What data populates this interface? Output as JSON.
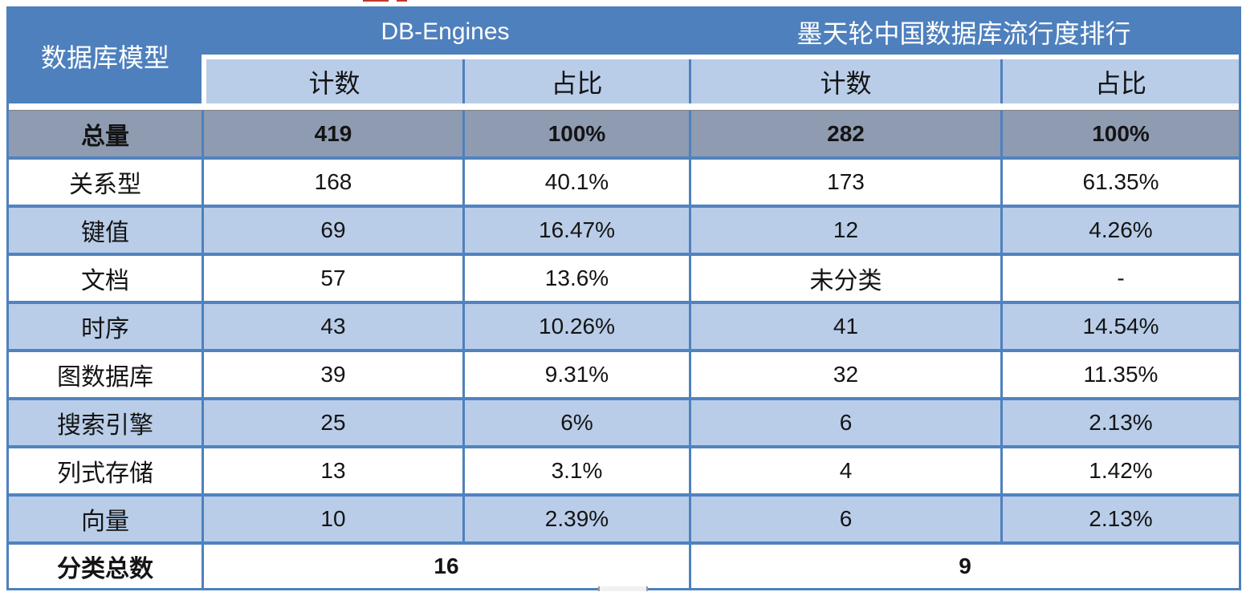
{
  "colors": {
    "header_blue": "#4E80BD",
    "band_light_blue": "#B9CDE8",
    "total_row_gray": "#8F9BB1",
    "border_blue": "#4E81BD",
    "header_text": "#FFFFFF",
    "body_text": "#141414"
  },
  "table": {
    "row_header_col": "数据库模型",
    "groups": [
      {
        "label": "DB-Engines",
        "columns": [
          "计数",
          "占比"
        ]
      },
      {
        "label": "墨天轮中国数据库流行度排行",
        "columns": [
          "计数",
          "占比"
        ]
      }
    ],
    "total_row": {
      "label": "总量",
      "values": [
        "419",
        "100%",
        "282",
        "100%"
      ]
    },
    "rows": [
      {
        "label": "关系型",
        "values": [
          "168",
          "40.1%",
          "173",
          "61.35%"
        ]
      },
      {
        "label": "键值",
        "values": [
          "69",
          "16.47%",
          "12",
          "4.26%"
        ]
      },
      {
        "label": "文档",
        "values": [
          "57",
          "13.6%",
          "未分类",
          "-"
        ]
      },
      {
        "label": "时序",
        "values": [
          "43",
          "10.26%",
          "41",
          "14.54%"
        ]
      },
      {
        "label": "图数据库",
        "values": [
          "39",
          "9.31%",
          "32",
          "11.35%"
        ]
      },
      {
        "label": "搜索引擎",
        "values": [
          "25",
          "6%",
          "6",
          "2.13%"
        ]
      },
      {
        "label": "列式存储",
        "values": [
          "13",
          "3.1%",
          "4",
          "1.42%"
        ]
      },
      {
        "label": "向量",
        "values": [
          "10",
          "2.39%",
          "6",
          "2.13%"
        ]
      }
    ],
    "footer_row": {
      "label": "分类总数",
      "values": [
        "16",
        "9"
      ]
    }
  },
  "chart_data": {
    "type": "table",
    "title": "数据库模型统计对比：DB-Engines vs 墨天轮中国数据库流行度排行",
    "columns": [
      "数据库模型",
      "DB-Engines 计数",
      "DB-Engines 占比",
      "墨天轮 计数",
      "墨天轮 占比"
    ],
    "rows": [
      [
        "总量",
        "419",
        "100%",
        "282",
        "100%"
      ],
      [
        "关系型",
        "168",
        "40.1%",
        "173",
        "61.35%"
      ],
      [
        "键值",
        "69",
        "16.47%",
        "12",
        "4.26%"
      ],
      [
        "文档",
        "57",
        "13.6%",
        "未分类",
        "-"
      ],
      [
        "时序",
        "43",
        "10.26%",
        "41",
        "14.54%"
      ],
      [
        "图数据库",
        "39",
        "9.31%",
        "32",
        "11.35%"
      ],
      [
        "搜索引擎",
        "25",
        "6%",
        "6",
        "2.13%"
      ],
      [
        "列式存储",
        "13",
        "3.1%",
        "4",
        "1.42%"
      ],
      [
        "向量",
        "10",
        "2.39%",
        "6",
        "2.13%"
      ],
      [
        "分类总数",
        "16",
        "",
        "9",
        ""
      ]
    ]
  }
}
